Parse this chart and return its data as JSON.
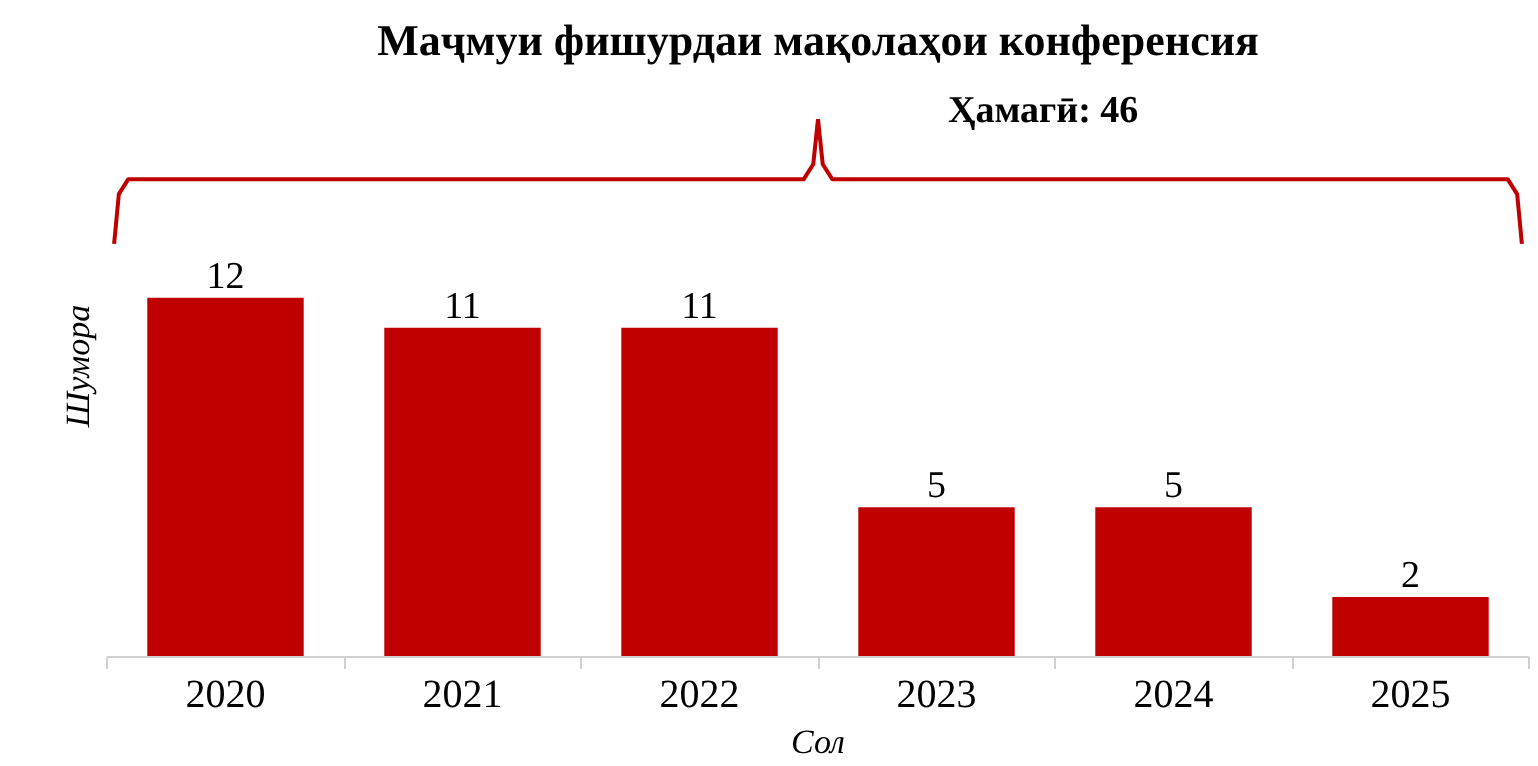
{
  "chart_data": {
    "type": "bar",
    "title": "Маҷмуи фишурдаи мақолаҳои конференсия",
    "xlabel": "Сол",
    "ylabel": "Шумора",
    "categories": [
      "2020",
      "2021",
      "2022",
      "2023",
      "2024",
      "2025"
    ],
    "values": [
      12,
      11,
      11,
      5,
      5,
      2
    ],
    "color": "#c00000",
    "data_labels": true,
    "grid": false,
    "annotations": [
      "Ҳамагӣ: 46"
    ]
  }
}
